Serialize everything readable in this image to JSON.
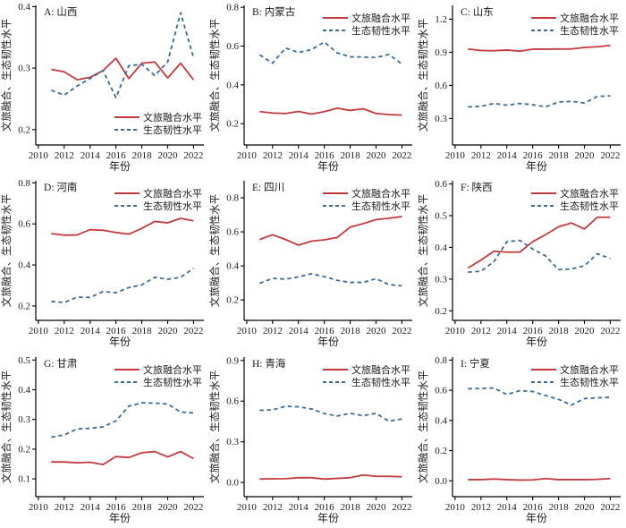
{
  "figure": {
    "xlabel": "年份",
    "ylabel": "文旅融合、生态韧性水平",
    "x_ticks": [
      2010,
      2012,
      2014,
      2016,
      2018,
      2020,
      2022
    ],
    "years": [
      2011,
      2012,
      2013,
      2014,
      2015,
      2016,
      2017,
      2018,
      2019,
      2020,
      2021,
      2022
    ],
    "xlim": [
      2009.8,
      2022.8
    ],
    "legend_labels": {
      "fusion": "文旅融合水平",
      "resilience": "生态韧性水平"
    },
    "colors": {
      "fusion_line": "#c23a3e",
      "resilience_line": "#3b6b96",
      "axis": "#000000",
      "text": "#1a1a1a",
      "background": "#ffffff"
    }
  },
  "chart_data": [
    {
      "type": "line",
      "panel": "A",
      "title": "A: 山西",
      "region": "山西",
      "ylim": [
        0.175,
        0.402
      ],
      "yticks": [
        0.2,
        0.3,
        0.4
      ],
      "grid": false,
      "legend_position": "bottom-right",
      "series": [
        {
          "name": "文旅融合水平",
          "style": "solid",
          "values": [
            0.298,
            0.294,
            0.281,
            0.285,
            0.296,
            0.316,
            0.283,
            0.308,
            0.31,
            0.284,
            0.308,
            0.281
          ]
        },
        {
          "name": "生态韧性水平",
          "style": "dashed",
          "values": [
            0.264,
            0.256,
            0.271,
            0.283,
            0.296,
            0.252,
            0.304,
            0.306,
            0.288,
            0.31,
            0.39,
            0.317
          ]
        }
      ]
    },
    {
      "type": "line",
      "panel": "B",
      "title": "B: 内蒙古",
      "region": "内蒙古",
      "ylim": [
        0.09,
        0.81
      ],
      "yticks": [
        0.2,
        0.4,
        0.6,
        0.8
      ],
      "grid": false,
      "legend_position": "top-right",
      "series": [
        {
          "name": "文旅融合水平",
          "style": "solid",
          "values": [
            0.262,
            0.255,
            0.252,
            0.263,
            0.249,
            0.262,
            0.28,
            0.268,
            0.277,
            0.252,
            0.247,
            0.244
          ]
        },
        {
          "name": "生态韧性水平",
          "style": "dashed",
          "values": [
            0.555,
            0.512,
            0.59,
            0.567,
            0.582,
            0.621,
            0.565,
            0.545,
            0.543,
            0.541,
            0.557,
            0.507
          ]
        }
      ]
    },
    {
      "type": "line",
      "panel": "C",
      "title": "C: 山东",
      "region": "山东",
      "ylim": [
        0.06,
        1.325
      ],
      "yticks": [
        0.3,
        0.6,
        0.9,
        1.2
      ],
      "grid": false,
      "legend_position": "top-right",
      "series": [
        {
          "name": "文旅融合水平",
          "style": "solid",
          "values": [
            0.93,
            0.916,
            0.914,
            0.92,
            0.91,
            0.928,
            0.928,
            0.929,
            0.93,
            0.944,
            0.95,
            0.962
          ]
        },
        {
          "name": "生态韧性水平",
          "style": "dashed",
          "values": [
            0.405,
            0.41,
            0.436,
            0.421,
            0.436,
            0.425,
            0.405,
            0.45,
            0.455,
            0.44,
            0.5,
            0.505
          ]
        }
      ]
    },
    {
      "type": "line",
      "panel": "D",
      "title": "D: 河南",
      "region": "河南",
      "ylim": [
        0.13,
        0.81
      ],
      "yticks": [
        0.2,
        0.4,
        0.6,
        0.8
      ],
      "grid": false,
      "legend_position": "top-right",
      "series": [
        {
          "name": "文旅融合水平",
          "style": "solid",
          "values": [
            0.553,
            0.545,
            0.546,
            0.572,
            0.569,
            0.558,
            0.55,
            0.578,
            0.612,
            0.605,
            0.627,
            0.615
          ]
        },
        {
          "name": "生态韧性水平",
          "style": "dashed",
          "values": [
            0.222,
            0.217,
            0.243,
            0.242,
            0.27,
            0.265,
            0.29,
            0.303,
            0.34,
            0.33,
            0.34,
            0.383
          ]
        }
      ]
    },
    {
      "type": "line",
      "panel": "E",
      "title": "E: 四川",
      "region": "四川",
      "ylim": [
        0.08,
        0.9
      ],
      "yticks": [
        0.2,
        0.4,
        0.6,
        0.8
      ],
      "grid": false,
      "legend_position": "top-right",
      "series": [
        {
          "name": "文旅融合水平",
          "style": "solid",
          "values": [
            0.555,
            0.583,
            0.555,
            0.522,
            0.545,
            0.553,
            0.567,
            0.628,
            0.648,
            0.672,
            0.68,
            0.69
          ]
        },
        {
          "name": "生态韧性水平",
          "style": "dashed",
          "values": [
            0.298,
            0.327,
            0.322,
            0.335,
            0.354,
            0.337,
            0.315,
            0.303,
            0.303,
            0.325,
            0.29,
            0.283
          ]
        }
      ]
    },
    {
      "type": "line",
      "panel": "F",
      "title": "F: 陕西",
      "region": "陕西",
      "ylim": [
        0.17,
        0.61
      ],
      "yticks": [
        0.2,
        0.3,
        0.4,
        0.5,
        0.6
      ],
      "grid": false,
      "legend_position": "top-right",
      "series": [
        {
          "name": "文旅融合水平",
          "style": "solid",
          "values": [
            0.335,
            0.36,
            0.388,
            0.385,
            0.385,
            0.418,
            0.44,
            0.465,
            0.477,
            0.458,
            0.495,
            0.495
          ]
        },
        {
          "name": "生态韧性水平",
          "style": "dashed",
          "values": [
            0.322,
            0.325,
            0.355,
            0.418,
            0.422,
            0.395,
            0.373,
            0.33,
            0.332,
            0.342,
            0.38,
            0.365
          ]
        }
      ]
    },
    {
      "type": "line",
      "panel": "G",
      "title": "G: 甘肃",
      "region": "甘肃",
      "ylim": [
        0.04,
        0.51
      ],
      "yticks": [
        0.1,
        0.2,
        0.3,
        0.4,
        0.5
      ],
      "grid": false,
      "legend_position": "top-right",
      "series": [
        {
          "name": "文旅融合水平",
          "style": "solid",
          "values": [
            0.157,
            0.157,
            0.154,
            0.156,
            0.148,
            0.175,
            0.172,
            0.188,
            0.192,
            0.174,
            0.192,
            0.168
          ]
        },
        {
          "name": "生态韧性水平",
          "style": "dashed",
          "values": [
            0.24,
            0.248,
            0.268,
            0.27,
            0.275,
            0.295,
            0.345,
            0.356,
            0.355,
            0.352,
            0.325,
            0.322
          ]
        }
      ]
    },
    {
      "type": "line",
      "panel": "H",
      "title": "H: 青海",
      "region": "青海",
      "ylim": [
        -0.105,
        0.925
      ],
      "yticks": [
        0.0,
        0.3,
        0.6,
        0.9
      ],
      "grid": false,
      "legend_position": "top-right",
      "series": [
        {
          "name": "文旅融合水平",
          "style": "solid",
          "values": [
            0.025,
            0.027,
            0.028,
            0.035,
            0.035,
            0.025,
            0.03,
            0.035,
            0.055,
            0.045,
            0.045,
            0.042
          ]
        },
        {
          "name": "生态韧性水平",
          "style": "dashed",
          "values": [
            0.532,
            0.535,
            0.562,
            0.558,
            0.543,
            0.508,
            0.49,
            0.51,
            0.492,
            0.51,
            0.452,
            0.468
          ]
        }
      ]
    },
    {
      "type": "line",
      "panel": "I",
      "title": "I: 宁夏",
      "region": "宁夏",
      "ylim": [
        -0.105,
        0.82
      ],
      "yticks": [
        0.0,
        0.2,
        0.4,
        0.6,
        0.8
      ],
      "grid": false,
      "legend_position": "top-right",
      "series": [
        {
          "name": "文旅融合水平",
          "style": "solid",
          "values": [
            0.008,
            0.008,
            0.012,
            0.008,
            0.005,
            0.006,
            0.015,
            0.008,
            0.008,
            0.008,
            0.01,
            0.015
          ]
        },
        {
          "name": "生态韧性水平",
          "style": "dashed",
          "values": [
            0.61,
            0.612,
            0.615,
            0.572,
            0.597,
            0.592,
            0.565,
            0.54,
            0.502,
            0.545,
            0.55,
            0.553
          ]
        }
      ]
    }
  ]
}
